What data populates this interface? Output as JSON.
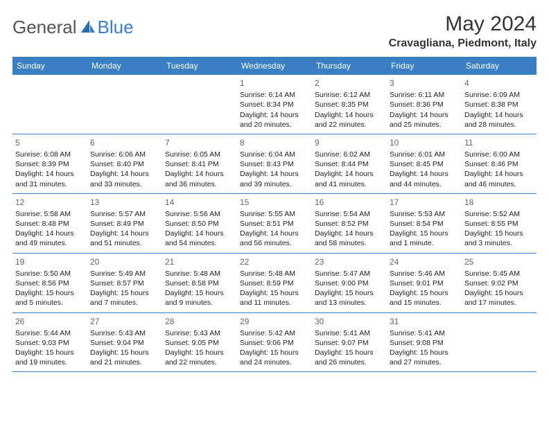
{
  "logo": {
    "text1": "General",
    "text2": "Blue"
  },
  "title": "May 2024",
  "location": "Cravagliana, Piedmont, Italy",
  "colors": {
    "header_bg": "#3a7fc4",
    "header_text": "#ffffff",
    "border": "#3a7fc4",
    "daynum": "#666666"
  },
  "weekdays": [
    "Sunday",
    "Monday",
    "Tuesday",
    "Wednesday",
    "Thursday",
    "Friday",
    "Saturday"
  ],
  "weeks": [
    [
      null,
      null,
      null,
      {
        "d": "1",
        "sr": "Sunrise: 6:14 AM",
        "ss": "Sunset: 8:34 PM",
        "dl1": "Daylight: 14 hours",
        "dl2": "and 20 minutes."
      },
      {
        "d": "2",
        "sr": "Sunrise: 6:12 AM",
        "ss": "Sunset: 8:35 PM",
        "dl1": "Daylight: 14 hours",
        "dl2": "and 22 minutes."
      },
      {
        "d": "3",
        "sr": "Sunrise: 6:11 AM",
        "ss": "Sunset: 8:36 PM",
        "dl1": "Daylight: 14 hours",
        "dl2": "and 25 minutes."
      },
      {
        "d": "4",
        "sr": "Sunrise: 6:09 AM",
        "ss": "Sunset: 8:38 PM",
        "dl1": "Daylight: 14 hours",
        "dl2": "and 28 minutes."
      }
    ],
    [
      {
        "d": "5",
        "sr": "Sunrise: 6:08 AM",
        "ss": "Sunset: 8:39 PM",
        "dl1": "Daylight: 14 hours",
        "dl2": "and 31 minutes."
      },
      {
        "d": "6",
        "sr": "Sunrise: 6:06 AM",
        "ss": "Sunset: 8:40 PM",
        "dl1": "Daylight: 14 hours",
        "dl2": "and 33 minutes."
      },
      {
        "d": "7",
        "sr": "Sunrise: 6:05 AM",
        "ss": "Sunset: 8:41 PM",
        "dl1": "Daylight: 14 hours",
        "dl2": "and 36 minutes."
      },
      {
        "d": "8",
        "sr": "Sunrise: 6:04 AM",
        "ss": "Sunset: 8:43 PM",
        "dl1": "Daylight: 14 hours",
        "dl2": "and 39 minutes."
      },
      {
        "d": "9",
        "sr": "Sunrise: 6:02 AM",
        "ss": "Sunset: 8:44 PM",
        "dl1": "Daylight: 14 hours",
        "dl2": "and 41 minutes."
      },
      {
        "d": "10",
        "sr": "Sunrise: 6:01 AM",
        "ss": "Sunset: 8:45 PM",
        "dl1": "Daylight: 14 hours",
        "dl2": "and 44 minutes."
      },
      {
        "d": "11",
        "sr": "Sunrise: 6:00 AM",
        "ss": "Sunset: 8:46 PM",
        "dl1": "Daylight: 14 hours",
        "dl2": "and 46 minutes."
      }
    ],
    [
      {
        "d": "12",
        "sr": "Sunrise: 5:58 AM",
        "ss": "Sunset: 8:48 PM",
        "dl1": "Daylight: 14 hours",
        "dl2": "and 49 minutes."
      },
      {
        "d": "13",
        "sr": "Sunrise: 5:57 AM",
        "ss": "Sunset: 8:49 PM",
        "dl1": "Daylight: 14 hours",
        "dl2": "and 51 minutes."
      },
      {
        "d": "14",
        "sr": "Sunrise: 5:56 AM",
        "ss": "Sunset: 8:50 PM",
        "dl1": "Daylight: 14 hours",
        "dl2": "and 54 minutes."
      },
      {
        "d": "15",
        "sr": "Sunrise: 5:55 AM",
        "ss": "Sunset: 8:51 PM",
        "dl1": "Daylight: 14 hours",
        "dl2": "and 56 minutes."
      },
      {
        "d": "16",
        "sr": "Sunrise: 5:54 AM",
        "ss": "Sunset: 8:52 PM",
        "dl1": "Daylight: 14 hours",
        "dl2": "and 58 minutes."
      },
      {
        "d": "17",
        "sr": "Sunrise: 5:53 AM",
        "ss": "Sunset: 8:54 PM",
        "dl1": "Daylight: 15 hours",
        "dl2": "and 1 minute."
      },
      {
        "d": "18",
        "sr": "Sunrise: 5:52 AM",
        "ss": "Sunset: 8:55 PM",
        "dl1": "Daylight: 15 hours",
        "dl2": "and 3 minutes."
      }
    ],
    [
      {
        "d": "19",
        "sr": "Sunrise: 5:50 AM",
        "ss": "Sunset: 8:56 PM",
        "dl1": "Daylight: 15 hours",
        "dl2": "and 5 minutes."
      },
      {
        "d": "20",
        "sr": "Sunrise: 5:49 AM",
        "ss": "Sunset: 8:57 PM",
        "dl1": "Daylight: 15 hours",
        "dl2": "and 7 minutes."
      },
      {
        "d": "21",
        "sr": "Sunrise: 5:48 AM",
        "ss": "Sunset: 8:58 PM",
        "dl1": "Daylight: 15 hours",
        "dl2": "and 9 minutes."
      },
      {
        "d": "22",
        "sr": "Sunrise: 5:48 AM",
        "ss": "Sunset: 8:59 PM",
        "dl1": "Daylight: 15 hours",
        "dl2": "and 11 minutes."
      },
      {
        "d": "23",
        "sr": "Sunrise: 5:47 AM",
        "ss": "Sunset: 9:00 PM",
        "dl1": "Daylight: 15 hours",
        "dl2": "and 13 minutes."
      },
      {
        "d": "24",
        "sr": "Sunrise: 5:46 AM",
        "ss": "Sunset: 9:01 PM",
        "dl1": "Daylight: 15 hours",
        "dl2": "and 15 minutes."
      },
      {
        "d": "25",
        "sr": "Sunrise: 5:45 AM",
        "ss": "Sunset: 9:02 PM",
        "dl1": "Daylight: 15 hours",
        "dl2": "and 17 minutes."
      }
    ],
    [
      {
        "d": "26",
        "sr": "Sunrise: 5:44 AM",
        "ss": "Sunset: 9:03 PM",
        "dl1": "Daylight: 15 hours",
        "dl2": "and 19 minutes."
      },
      {
        "d": "27",
        "sr": "Sunrise: 5:43 AM",
        "ss": "Sunset: 9:04 PM",
        "dl1": "Daylight: 15 hours",
        "dl2": "and 21 minutes."
      },
      {
        "d": "28",
        "sr": "Sunrise: 5:43 AM",
        "ss": "Sunset: 9:05 PM",
        "dl1": "Daylight: 15 hours",
        "dl2": "and 22 minutes."
      },
      {
        "d": "29",
        "sr": "Sunrise: 5:42 AM",
        "ss": "Sunset: 9:06 PM",
        "dl1": "Daylight: 15 hours",
        "dl2": "and 24 minutes."
      },
      {
        "d": "30",
        "sr": "Sunrise: 5:41 AM",
        "ss": "Sunset: 9:07 PM",
        "dl1": "Daylight: 15 hours",
        "dl2": "and 26 minutes."
      },
      {
        "d": "31",
        "sr": "Sunrise: 5:41 AM",
        "ss": "Sunset: 9:08 PM",
        "dl1": "Daylight: 15 hours",
        "dl2": "and 27 minutes."
      },
      null
    ]
  ]
}
